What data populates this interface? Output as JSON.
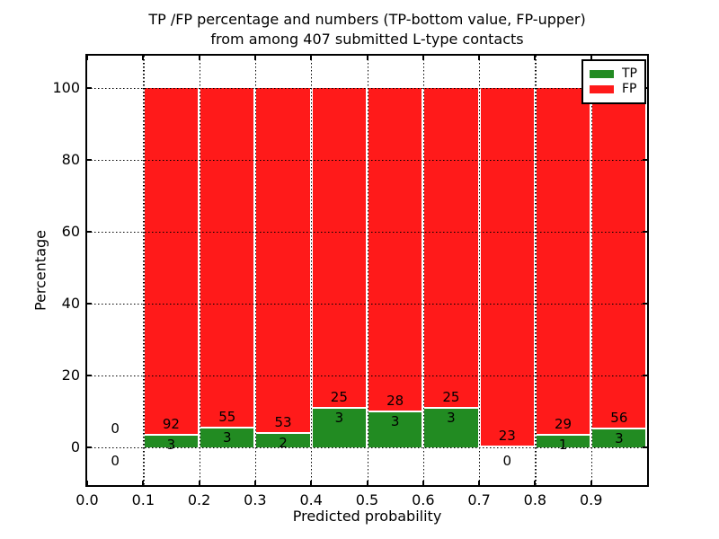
{
  "title": {
    "line1": "TP /FP percentage and numbers (TP-bottom value, FP-upper)",
    "line2": "from among 407 submitted L-type contacts"
  },
  "axes": {
    "xlabel": "Predicted probability",
    "ylabel": "Percentage",
    "x_tick_labels": [
      "0.0",
      "0.1",
      "0.2",
      "0.3",
      "0.4",
      "0.5",
      "0.6",
      "0.7",
      "0.8",
      "0.9"
    ],
    "y_tick_labels": [
      "0",
      "20",
      "40",
      "60",
      "80",
      "100"
    ]
  },
  "legend": {
    "items": [
      {
        "label": "TP",
        "color": "#228b22"
      },
      {
        "label": "FP",
        "color": "#ff1a1a"
      }
    ],
    "position": "upper right"
  },
  "chart_data": {
    "type": "bar",
    "stacked": true,
    "title": "TP /FP percentage and numbers (TP-bottom value, FP-upper) from among 407 submitted L-type contacts",
    "xlabel": "Predicted probability",
    "ylabel": "Percentage",
    "xlim": [
      0.0,
      1.0
    ],
    "ylim": [
      -10.5,
      109.5
    ],
    "y_ticks": [
      0,
      20,
      40,
      60,
      80,
      100
    ],
    "x_ticks": [
      0.0,
      0.1,
      0.2,
      0.3,
      0.4,
      0.5,
      0.6,
      0.7,
      0.8,
      0.9
    ],
    "grid": true,
    "grid_style": "dotted",
    "total_contacts": 407,
    "colors": {
      "tp": "#228b22",
      "fp": "#ff1a1a"
    },
    "bins": [
      {
        "range": [
          0.0,
          0.1
        ],
        "tp": 0,
        "fp": 0
      },
      {
        "range": [
          0.1,
          0.2
        ],
        "tp": 3,
        "fp": 92
      },
      {
        "range": [
          0.2,
          0.3
        ],
        "tp": 3,
        "fp": 55
      },
      {
        "range": [
          0.3,
          0.4
        ],
        "tp": 2,
        "fp": 53
      },
      {
        "range": [
          0.4,
          0.5
        ],
        "tp": 3,
        "fp": 25
      },
      {
        "range": [
          0.5,
          0.6
        ],
        "tp": 3,
        "fp": 28
      },
      {
        "range": [
          0.6,
          0.7
        ],
        "tp": 3,
        "fp": 25
      },
      {
        "range": [
          0.7,
          0.8
        ],
        "tp": 0,
        "fp": 23
      },
      {
        "range": [
          0.8,
          0.9
        ],
        "tp": 1,
        "fp": 29
      },
      {
        "range": [
          0.9,
          1.0
        ],
        "tp": 3,
        "fp": 56
      }
    ]
  }
}
